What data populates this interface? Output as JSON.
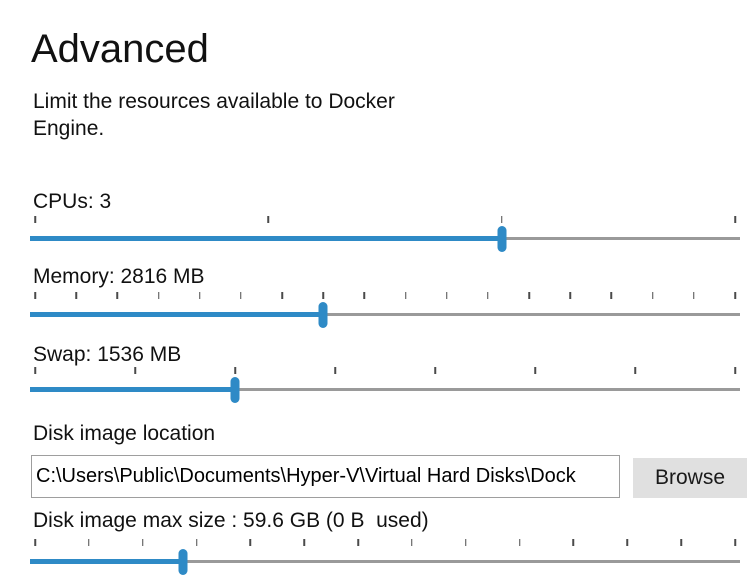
{
  "page": {
    "title": "Advanced",
    "subtitle": "Limit the resources available to Docker Engine."
  },
  "sliders": {
    "cpus": {
      "label": "CPUs: 3",
      "tick_count": 4,
      "fraction": 0.667
    },
    "memory": {
      "label": "Memory: 2816 MB",
      "tick_count": 18,
      "fraction": 0.412
    },
    "swap": {
      "label": "Swap: 1536 MB",
      "tick_count": 8,
      "fraction": 0.286
    },
    "disk": {
      "label": "Disk image max size : 59.6 GB (0 B  used)",
      "tick_count": 14,
      "fraction": 0.212
    }
  },
  "disk_location": {
    "label": "Disk image location",
    "value": "C:\\Users\\Public\\Documents\\Hyper-V\\Virtual Hard Disks\\Dock",
    "browse_label": "Browse"
  },
  "colors": {
    "accent": "#2E8AC6",
    "track_gray": "#9A9A9A",
    "tick": "#4A4A4A",
    "button_bg": "#E0E0E0",
    "input_border": "#9E9E9E",
    "text": "#1A1A1A"
  }
}
